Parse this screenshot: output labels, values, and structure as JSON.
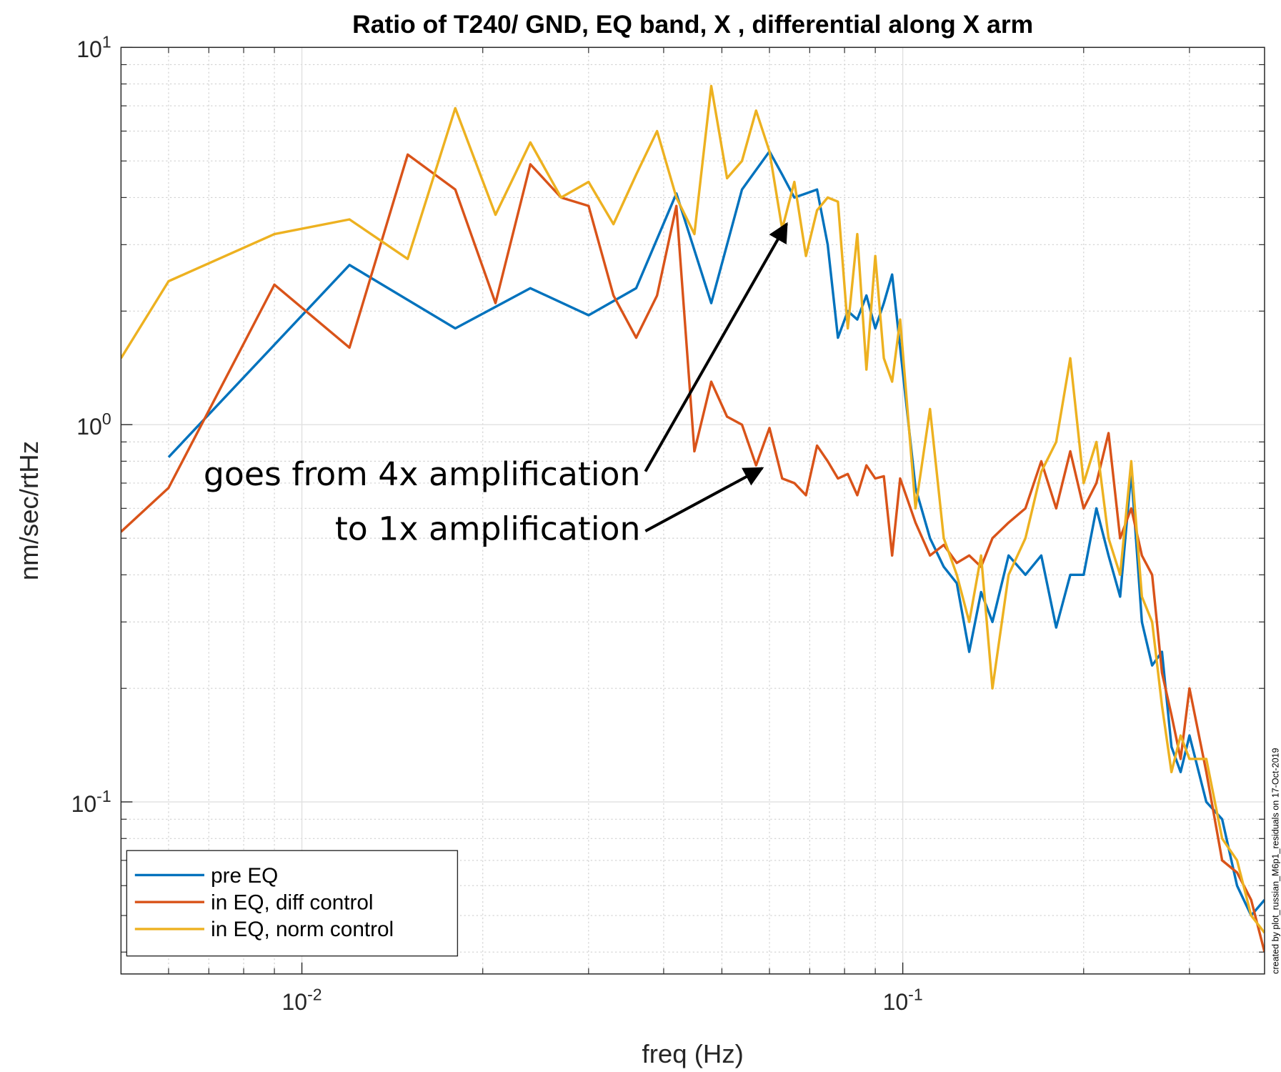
{
  "chart_data": {
    "type": "line",
    "title": "Ratio of T240/ GND, EQ band, X , differential along X arm",
    "x_label": "freq (Hz)",
    "y_label": "nm/sec/rtHz",
    "log_x": true,
    "log_y": true,
    "grid": true,
    "minor_grid": true,
    "legend": "lower left",
    "xlim": [
      0.005,
      0.4
    ],
    "ylim": [
      0.035,
      10
    ],
    "xticks": [
      {
        "value": 0.01,
        "label": "10^-2"
      },
      {
        "value": 0.1,
        "label": "10^-1"
      }
    ],
    "yticks": [
      {
        "value": 0.1,
        "label": "10^-1"
      },
      {
        "value": 1,
        "label": "10^0"
      },
      {
        "value": 10,
        "label": "10^1"
      }
    ],
    "x": [
      0.005,
      0.006,
      0.009,
      0.012,
      0.015,
      0.018,
      0.021,
      0.024,
      0.027,
      0.03,
      0.033,
      0.036,
      0.039,
      0.042,
      0.045,
      0.048,
      0.051,
      0.054,
      0.057,
      0.06,
      0.063,
      0.066,
      0.069,
      0.072,
      0.075,
      0.078,
      0.081,
      0.084,
      0.087,
      0.09,
      0.093,
      0.096,
      0.099,
      0.105,
      0.111,
      0.117,
      0.123,
      0.129,
      0.135,
      0.141,
      0.15,
      0.16,
      0.17,
      0.18,
      0.19,
      0.2,
      0.21,
      0.22,
      0.23,
      0.24,
      0.25,
      0.26,
      0.27,
      0.28,
      0.29,
      0.3,
      0.32,
      0.34,
      0.36,
      0.38,
      0.4
    ],
    "series": [
      {
        "name": "pre EQ",
        "color": "#0072bd",
        "x": [
          0.006,
          0.012,
          0.018,
          0.024,
          0.03,
          0.036,
          0.042,
          0.048,
          0.054,
          0.06,
          0.063,
          0.066,
          0.069,
          0.072,
          0.075,
          0.078,
          0.081,
          0.084,
          0.087,
          0.09,
          0.093,
          0.096,
          0.099,
          0.105,
          0.111,
          0.117,
          0.123,
          0.129,
          0.135,
          0.141,
          0.15,
          0.16,
          0.17,
          0.18,
          0.19,
          0.2,
          0.21,
          0.22,
          0.23,
          0.24,
          0.25,
          0.26,
          0.27,
          0.28,
          0.29,
          0.3,
          0.32,
          0.34,
          0.36,
          0.38,
          0.4
        ],
        "values": [
          0.82,
          2.65,
          1.8,
          2.3,
          1.95,
          2.3,
          4.1,
          2.1,
          4.2,
          5.3,
          4.6,
          4.0,
          4.1,
          4.2,
          3.0,
          1.7,
          2.0,
          1.9,
          2.2,
          1.8,
          2.1,
          2.5,
          1.6,
          0.68,
          0.5,
          0.42,
          0.38,
          0.25,
          0.36,
          0.3,
          0.45,
          0.4,
          0.45,
          0.29,
          0.4,
          0.4,
          0.6,
          0.45,
          0.35,
          0.75,
          0.3,
          0.23,
          0.25,
          0.14,
          0.12,
          0.15,
          0.1,
          0.09,
          0.06,
          0.05,
          0.055
        ]
      },
      {
        "name": "in EQ, diff control",
        "color": "#d95319",
        "values": [
          0.52,
          0.68,
          2.35,
          1.6,
          5.2,
          4.2,
          2.1,
          4.9,
          4.0,
          3.8,
          2.2,
          1.7,
          2.2,
          3.8,
          0.85,
          1.3,
          1.05,
          1.0,
          0.78,
          0.98,
          0.72,
          0.7,
          0.65,
          0.88,
          0.8,
          0.72,
          0.74,
          0.65,
          0.78,
          0.72,
          0.73,
          0.45,
          0.72,
          0.55,
          0.45,
          0.48,
          0.43,
          0.45,
          0.42,
          0.5,
          0.55,
          0.6,
          0.8,
          0.6,
          0.85,
          0.6,
          0.7,
          0.95,
          0.5,
          0.6,
          0.45,
          0.4,
          0.22,
          0.17,
          0.13,
          0.2,
          0.12,
          0.07,
          0.065,
          0.055,
          0.04
        ]
      },
      {
        "name": "in EQ, norm control",
        "color": "#edb120",
        "values": [
          1.5,
          2.4,
          3.2,
          3.5,
          2.75,
          6.9,
          3.6,
          5.6,
          4.0,
          4.4,
          3.4,
          4.6,
          6.0,
          4.0,
          3.2,
          7.9,
          4.5,
          5.0,
          6.8,
          5.3,
          3.3,
          4.4,
          2.8,
          3.7,
          4.0,
          3.9,
          1.8,
          3.2,
          1.4,
          2.8,
          1.5,
          1.3,
          1.9,
          0.6,
          1.1,
          0.5,
          0.4,
          0.3,
          0.45,
          0.2,
          0.4,
          0.5,
          0.75,
          0.9,
          1.5,
          0.7,
          0.9,
          0.5,
          0.4,
          0.8,
          0.35,
          0.3,
          0.18,
          0.12,
          0.15,
          0.13,
          0.13,
          0.08,
          0.07,
          0.05,
          0.045
        ]
      }
    ],
    "annotations": [
      "goes from 4x amplification",
      "to 1x amplification"
    ],
    "side_note": "created by plot_russian_M6p1_residuals on 17-Oct-2019"
  }
}
